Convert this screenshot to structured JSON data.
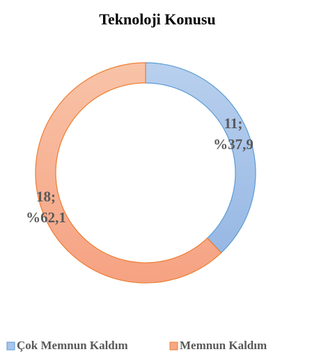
{
  "chart_data": {
    "type": "donut",
    "title": "Teknoloji Konusu",
    "categories": [
      "Çok Memnun Kaldım",
      "Memnun Kaldım"
    ],
    "values": [
      11,
      18
    ],
    "value_labels": [
      "11;\n%37,9",
      "18;\n%62,1"
    ],
    "colors": [
      "#a9c5ea",
      "#f6a886"
    ],
    "legend": "bottom"
  }
}
